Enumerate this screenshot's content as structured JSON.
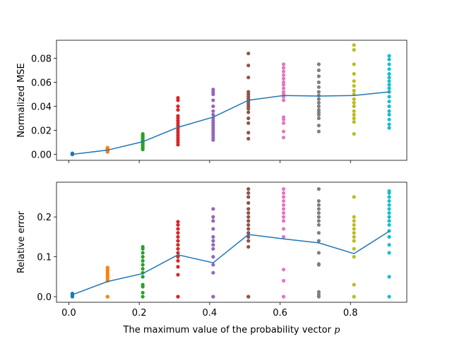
{
  "chart_data": [
    {
      "type": "scatter",
      "ylabel": "Normalized MSE",
      "xlim": [
        -0.035,
        0.96
      ],
      "xticks": [
        0,
        0.2,
        0.4,
        0.6,
        0.8
      ],
      "xtick_labels": false,
      "ylim": [
        -0.005,
        0.095
      ],
      "yticks": [
        {
          "value": 0,
          "label": "0.00"
        },
        {
          "value": 0.02,
          "label": "0.02"
        },
        {
          "value": 0.04,
          "label": "0.04"
        },
        {
          "value": 0.06,
          "label": "0.06"
        },
        {
          "value": 0.08,
          "label": "0.08"
        }
      ],
      "series": [
        {
          "color": "#1f77b4",
          "x": [
            0.01,
            0.01,
            0.01,
            0.01,
            0.01,
            0.01
          ],
          "values": [
            0,
            0,
            0,
            0.0003,
            0.0005,
            0.0008
          ]
        },
        {
          "color": "#ff7f0e",
          "x": [
            0.11,
            0.11,
            0.11,
            0.11,
            0.11,
            0.11,
            0.11,
            0.11,
            0.11,
            0.11
          ],
          "values": [
            0.002,
            0.0025,
            0.003,
            0.003,
            0.0035,
            0.004,
            0.004,
            0.0045,
            0.005,
            0.0055
          ]
        },
        {
          "color": "#2ca02c",
          "x": [
            0.21,
            0.21,
            0.21,
            0.21,
            0.21,
            0.21,
            0.21,
            0.21,
            0.21,
            0.21,
            0.21,
            0.21,
            0.21,
            0.21
          ],
          "values": [
            0.004,
            0.005,
            0.006,
            0.007,
            0.008,
            0.009,
            0.01,
            0.011,
            0.012,
            0.013,
            0.014,
            0.015,
            0.016,
            0.017
          ]
        },
        {
          "color": "#d62728",
          "x": [
            0.31,
            0.31,
            0.31,
            0.31,
            0.31,
            0.31,
            0.31,
            0.31,
            0.31,
            0.31,
            0.31,
            0.31,
            0.31,
            0.31,
            0.31,
            0.31,
            0.31
          ],
          "values": [
            0.008,
            0.01,
            0.012,
            0.014,
            0.016,
            0.018,
            0.02,
            0.022,
            0.024,
            0.026,
            0.028,
            0.03,
            0.032,
            0.037,
            0.04,
            0.045,
            0.047
          ]
        },
        {
          "color": "#9467bd",
          "x": [
            0.41,
            0.41,
            0.41,
            0.41,
            0.41,
            0.41,
            0.41,
            0.41,
            0.41,
            0.41,
            0.41,
            0.41,
            0.41,
            0.41,
            0.41,
            0.41,
            0.41
          ],
          "values": [
            0.012,
            0.014,
            0.016,
            0.018,
            0.02,
            0.022,
            0.024,
            0.026,
            0.028,
            0.03,
            0.033,
            0.036,
            0.04,
            0.045,
            0.05,
            0.052,
            0.054
          ]
        },
        {
          "color": "#8c564b",
          "x": [
            0.51,
            0.51,
            0.51,
            0.51,
            0.51,
            0.51,
            0.51,
            0.51,
            0.51,
            0.51,
            0.51,
            0.51,
            0.51,
            0.51,
            0.51,
            0.51
          ],
          "values": [
            0.013,
            0.018,
            0.026,
            0.03,
            0.035,
            0.038,
            0.04,
            0.042,
            0.044,
            0.046,
            0.048,
            0.05,
            0.052,
            0.064,
            0.074,
            0.084
          ]
        },
        {
          "color": "#e377c2",
          "x": [
            0.61,
            0.61,
            0.61,
            0.61,
            0.61,
            0.61,
            0.61,
            0.61,
            0.61,
            0.61,
            0.61,
            0.61,
            0.61,
            0.61,
            0.61,
            0.61,
            0.61
          ],
          "values": [
            0.014,
            0.019,
            0.026,
            0.029,
            0.031,
            0.045,
            0.048,
            0.05,
            0.052,
            0.055,
            0.058,
            0.06,
            0.063,
            0.066,
            0.069,
            0.072,
            0.075
          ]
        },
        {
          "color": "#7f7f7f",
          "x": [
            0.71,
            0.71,
            0.71,
            0.71,
            0.71,
            0.71,
            0.71,
            0.71,
            0.71,
            0.71,
            0.71,
            0.71,
            0.71,
            0.71,
            0.71,
            0.71
          ],
          "values": [
            0.019,
            0.024,
            0.03,
            0.033,
            0.035,
            0.037,
            0.04,
            0.043,
            0.046,
            0.049,
            0.052,
            0.056,
            0.06,
            0.065,
            0.07,
            0.075
          ]
        },
        {
          "color": "#bcbd22",
          "x": [
            0.81,
            0.81,
            0.81,
            0.81,
            0.81,
            0.81,
            0.81,
            0.81,
            0.81,
            0.81,
            0.81,
            0.81,
            0.81,
            0.81,
            0.81,
            0.81
          ],
          "values": [
            0.017,
            0.027,
            0.03,
            0.033,
            0.036,
            0.04,
            0.043,
            0.046,
            0.05,
            0.053,
            0.057,
            0.061,
            0.067,
            0.075,
            0.087,
            0.091
          ]
        },
        {
          "color": "#17becf",
          "x": [
            0.91,
            0.91,
            0.91,
            0.91,
            0.91,
            0.91,
            0.91,
            0.91,
            0.91,
            0.91,
            0.91,
            0.91,
            0.91,
            0.91,
            0.91,
            0.91,
            0.91,
            0.91
          ],
          "values": [
            0.022,
            0.025,
            0.029,
            0.033,
            0.036,
            0.04,
            0.044,
            0.048,
            0.052,
            0.055,
            0.058,
            0.061,
            0.064,
            0.067,
            0.071,
            0.075,
            0.079,
            0.082
          ]
        }
      ],
      "line": {
        "color": "#1f77b4",
        "x": [
          0.01,
          0.11,
          0.21,
          0.31,
          0.41,
          0.51,
          0.61,
          0.71,
          0.81,
          0.91
        ],
        "values": [
          0,
          0.0035,
          0.0105,
          0.0225,
          0.031,
          0.045,
          0.049,
          0.0485,
          0.049,
          0.052
        ]
      }
    },
    {
      "type": "scatter",
      "ylabel": "Relative error",
      "xlabel": "The maximum value of the probability vector",
      "xlabel_var": "p",
      "xlim": [
        -0.035,
        0.96
      ],
      "xtick_labels": true,
      "xticks": [
        {
          "value": 0,
          "label": "0.0"
        },
        {
          "value": 0.2,
          "label": "0.2"
        },
        {
          "value": 0.4,
          "label": "0.4"
        },
        {
          "value": 0.6,
          "label": "0.6"
        },
        {
          "value": 0.8,
          "label": "0.8"
        }
      ],
      "ylim": [
        -0.014,
        0.287
      ],
      "yticks": [
        {
          "value": 0,
          "label": "0.0"
        },
        {
          "value": 0.1,
          "label": "0.1"
        },
        {
          "value": 0.2,
          "label": "0.2"
        }
      ],
      "series": [
        {
          "color": "#1f77b4",
          "x": [
            0.01,
            0.01,
            0.01,
            0.01,
            0.01
          ],
          "values": [
            0,
            0.002,
            0.004,
            0.006,
            0.008
          ]
        },
        {
          "color": "#ff7f0e",
          "x": [
            0.11,
            0.11,
            0.11,
            0.11,
            0.11,
            0.11,
            0.11,
            0.11,
            0.11,
            0.11
          ],
          "values": [
            0,
            0,
            0.04,
            0.045,
            0.05,
            0.055,
            0.06,
            0.065,
            0.07,
            0.073
          ]
        },
        {
          "color": "#2ca02c",
          "x": [
            0.21,
            0.21,
            0.21,
            0.21,
            0.21,
            0.21,
            0.21,
            0.21,
            0.21,
            0.21,
            0.21,
            0.21,
            0.21
          ],
          "values": [
            0,
            0.01,
            0.025,
            0.03,
            0.05,
            0.06,
            0.07,
            0.08,
            0.09,
            0.1,
            0.11,
            0.12,
            0.125
          ]
        },
        {
          "color": "#d62728",
          "x": [
            0.31,
            0.31,
            0.31,
            0.31,
            0.31,
            0.31,
            0.31,
            0.31,
            0.31,
            0.31,
            0.31,
            0.31,
            0.31,
            0.31,
            0.31
          ],
          "values": [
            0,
            0,
            0.055,
            0.075,
            0.09,
            0.1,
            0.11,
            0.12,
            0.13,
            0.14,
            0.15,
            0.16,
            0.17,
            0.18,
            0.188
          ]
        },
        {
          "color": "#9467bd",
          "x": [
            0.41,
            0.41,
            0.41,
            0.41,
            0.41,
            0.41,
            0.41,
            0.41,
            0.41,
            0.41,
            0.41,
            0.41,
            0.41
          ],
          "values": [
            0,
            0,
            0.06,
            0.08,
            0.1,
            0.12,
            0.13,
            0.14,
            0.15,
            0.17,
            0.19,
            0.2,
            0.22
          ]
        },
        {
          "color": "#8c564b",
          "x": [
            0.51,
            0.51,
            0.51,
            0.51,
            0.51,
            0.51,
            0.51,
            0.51,
            0.51,
            0.51,
            0.51,
            0.51,
            0.51,
            0.51,
            0.51,
            0.51
          ],
          "values": [
            0,
            0,
            0.125,
            0.14,
            0.15,
            0.16,
            0.17,
            0.18,
            0.19,
            0.2,
            0.21,
            0.22,
            0.235,
            0.25,
            0.26,
            0.27
          ]
        },
        {
          "color": "#e377c2",
          "x": [
            0.61,
            0.61,
            0.61,
            0.61,
            0.61,
            0.61,
            0.61,
            0.61,
            0.61,
            0.61,
            0.61,
            0.61,
            0.61,
            0.61,
            0.61
          ],
          "values": [
            0,
            0,
            0.04,
            0.068,
            0.15,
            0.17,
            0.19,
            0.2,
            0.21,
            0.22,
            0.23,
            0.24,
            0.25,
            0.26,
            0.27
          ]
        },
        {
          "color": "#7f7f7f",
          "x": [
            0.71,
            0.71,
            0.71,
            0.71,
            0.71,
            0.71,
            0.71,
            0.71,
            0.71,
            0.71,
            0.71,
            0.71,
            0.71,
            0.71,
            0.71,
            0.71
          ],
          "values": [
            0,
            0.005,
            0.012,
            0.08,
            0.082,
            0.11,
            0.14,
            0.16,
            0.18,
            0.19,
            0.2,
            0.21,
            0.22,
            0.23,
            0.24,
            0.27
          ]
        },
        {
          "color": "#bcbd22",
          "x": [
            0.81,
            0.81,
            0.81,
            0.81,
            0.81,
            0.81,
            0.81,
            0.81,
            0.81,
            0.81,
            0.81,
            0.81,
            0.81
          ],
          "values": [
            0,
            0,
            0.03,
            0.1,
            0.12,
            0.14,
            0.15,
            0.16,
            0.17,
            0.18,
            0.19,
            0.2,
            0.25
          ]
        },
        {
          "color": "#17becf",
          "x": [
            0.91,
            0.91,
            0.91,
            0.91,
            0.91,
            0.91,
            0.91,
            0.91,
            0.91,
            0.91,
            0.91,
            0.91,
            0.91,
            0.91,
            0.91,
            0.91
          ],
          "values": [
            0,
            0.05,
            0.11,
            0.13,
            0.15,
            0.165,
            0.18,
            0.19,
            0.2,
            0.21,
            0.22,
            0.23,
            0.24,
            0.25,
            0.26,
            0.265
          ]
        }
      ],
      "line": {
        "color": "#1f77b4",
        "x": [
          0.01,
          0.11,
          0.21,
          0.31,
          0.41,
          0.51,
          0.61,
          0.71,
          0.81,
          0.91
        ],
        "values": [
          0.005,
          0.038,
          0.058,
          0.105,
          0.085,
          0.156,
          0.145,
          0.135,
          0.108,
          0.164
        ]
      }
    }
  ]
}
